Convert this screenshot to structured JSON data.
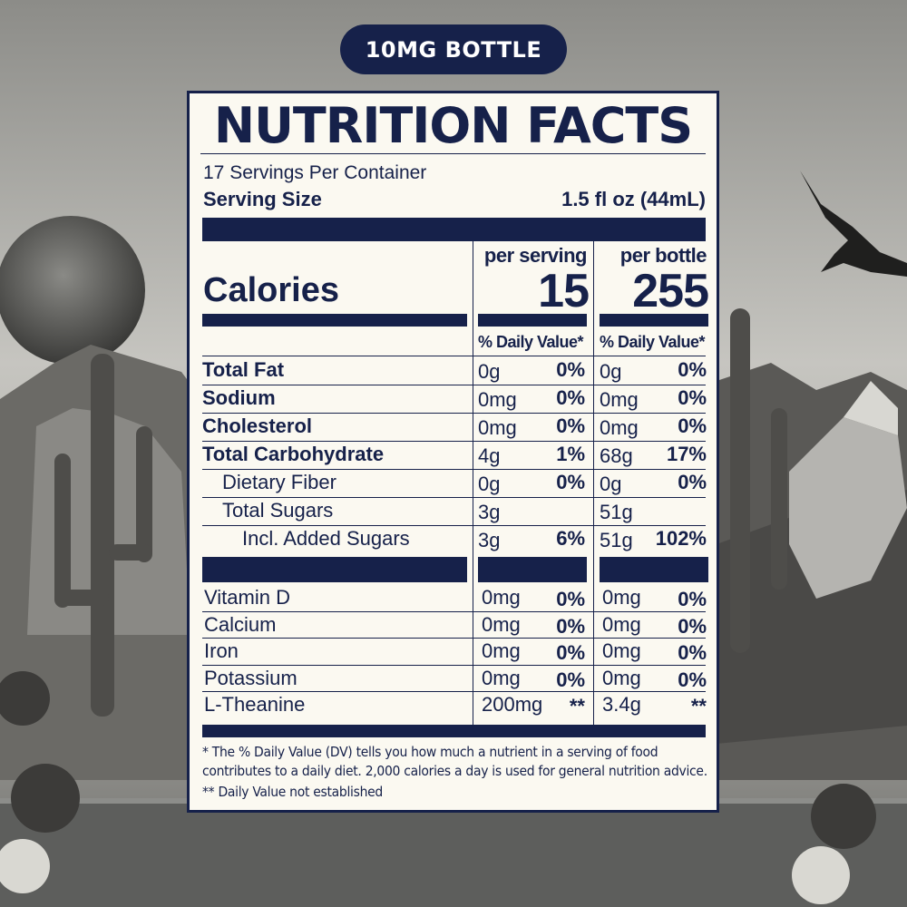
{
  "badge": "10MG BOTTLE",
  "title": "NUTRITION FACTS",
  "servings_per_container": "17 Servings Per Container",
  "serving_size_label": "Serving Size",
  "serving_size_value": "1.5 fl oz (44mL)",
  "per_serving_label": "per serving",
  "per_bottle_label": "per bottle",
  "calories_label": "Calories",
  "calories_per_serving": "15",
  "calories_per_bottle": "255",
  "dv_header": "% Daily Value*",
  "nutrients": [
    {
      "label": "Total Fat",
      "bold": true,
      "indent": 0,
      "s_amt": "0g",
      "s_pct": "0%",
      "b_amt": "0g",
      "b_pct": "0%"
    },
    {
      "label": "Sodium",
      "bold": true,
      "indent": 0,
      "s_amt": "0mg",
      "s_pct": "0%",
      "b_amt": "0mg",
      "b_pct": "0%"
    },
    {
      "label": "Cholesterol",
      "bold": true,
      "indent": 0,
      "s_amt": "0mg",
      "s_pct": "0%",
      "b_amt": "0mg",
      "b_pct": "0%"
    },
    {
      "label": "Total Carbohydrate",
      "bold": true,
      "indent": 0,
      "s_amt": "4g",
      "s_pct": "1%",
      "b_amt": "68g",
      "b_pct": "17%"
    },
    {
      "label": "Dietary Fiber",
      "bold": false,
      "indent": 1,
      "s_amt": "0g",
      "s_pct": "0%",
      "b_amt": "0g",
      "b_pct": "0%"
    },
    {
      "label": "Total Sugars",
      "bold": false,
      "indent": 1,
      "s_amt": "3g",
      "s_pct": "",
      "b_amt": "51g",
      "b_pct": ""
    },
    {
      "label": "Incl. Added Sugars",
      "bold": false,
      "indent": 2,
      "s_amt": "3g",
      "s_pct": "6%",
      "b_amt": "51g",
      "b_pct": "102%"
    }
  ],
  "vitamins": [
    {
      "label": "Vitamin D",
      "s_amt": "0mg",
      "s_pct": "0%",
      "b_amt": "0mg",
      "b_pct": "0%"
    },
    {
      "label": "Calcium",
      "s_amt": "0mg",
      "s_pct": "0%",
      "b_amt": "0mg",
      "b_pct": "0%"
    },
    {
      "label": "Iron",
      "s_amt": "0mg",
      "s_pct": "0%",
      "b_amt": "0mg",
      "b_pct": "0%"
    },
    {
      "label": "Potassium",
      "s_amt": "0mg",
      "s_pct": "0%",
      "b_amt": "0mg",
      "b_pct": "0%"
    },
    {
      "label": "L-Theanine",
      "s_amt": "200mg",
      "s_pct": "**",
      "b_amt": "3.4g",
      "b_pct": "**"
    }
  ],
  "footnote_1": "* The % Daily Value (DV) tells you how much a nutrient in a serving of food contributes to a daily diet. 2,000 calories a day is used for general nutrition advice.",
  "footnote_2": "** Daily Value not established",
  "colors": {
    "navy": "#16214a",
    "panel": "#fbf9f1"
  }
}
